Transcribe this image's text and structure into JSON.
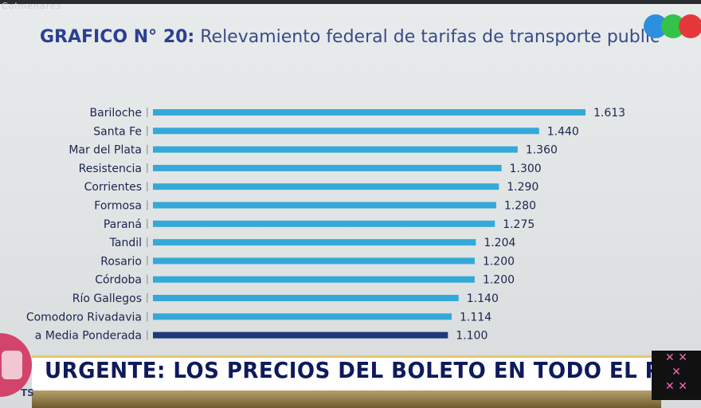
{
  "watermark": "Colmenares",
  "title": {
    "strong": "GRAFICO N° 20:",
    "rest": "Relevamiento federal de tarifas de transporte public"
  },
  "chart_data": {
    "type": "bar",
    "orientation": "horizontal",
    "categories": [
      "Bariloche",
      "Santa Fe",
      "Mar del Plata",
      "Resistencia",
      "Corrientes",
      "Formosa",
      "Paraná",
      "Tandil",
      "Rosario",
      "Córdoba",
      "Río Gallegos",
      "Comodoro Rivadavia",
      "a Media Ponderada"
    ],
    "values": [
      1613,
      1440,
      1360,
      1300,
      1290,
      1280,
      1275,
      1204,
      1200,
      1200,
      1140,
      1114,
      1100
    ],
    "value_labels": [
      "1.613",
      "1.440",
      "1.360",
      "1.300",
      "1.290",
      "1.280",
      "1.275",
      "1.204",
      "1.200",
      "1.200",
      "1.140",
      "1.114",
      "1.100"
    ],
    "colors": {
      "bar": "#34a9d9",
      "highlight": "#1d3a7a",
      "highlight_index": 12
    },
    "xlim": [
      0,
      1613
    ]
  },
  "banner": {
    "text": "URGENTE: LOS PRECIOS DEL BOLETO EN TODO EL PAÍS"
  },
  "ts_label": "TS",
  "channel_logo": "telefe-circles-icon",
  "deco_icon": "pattern-icon"
}
